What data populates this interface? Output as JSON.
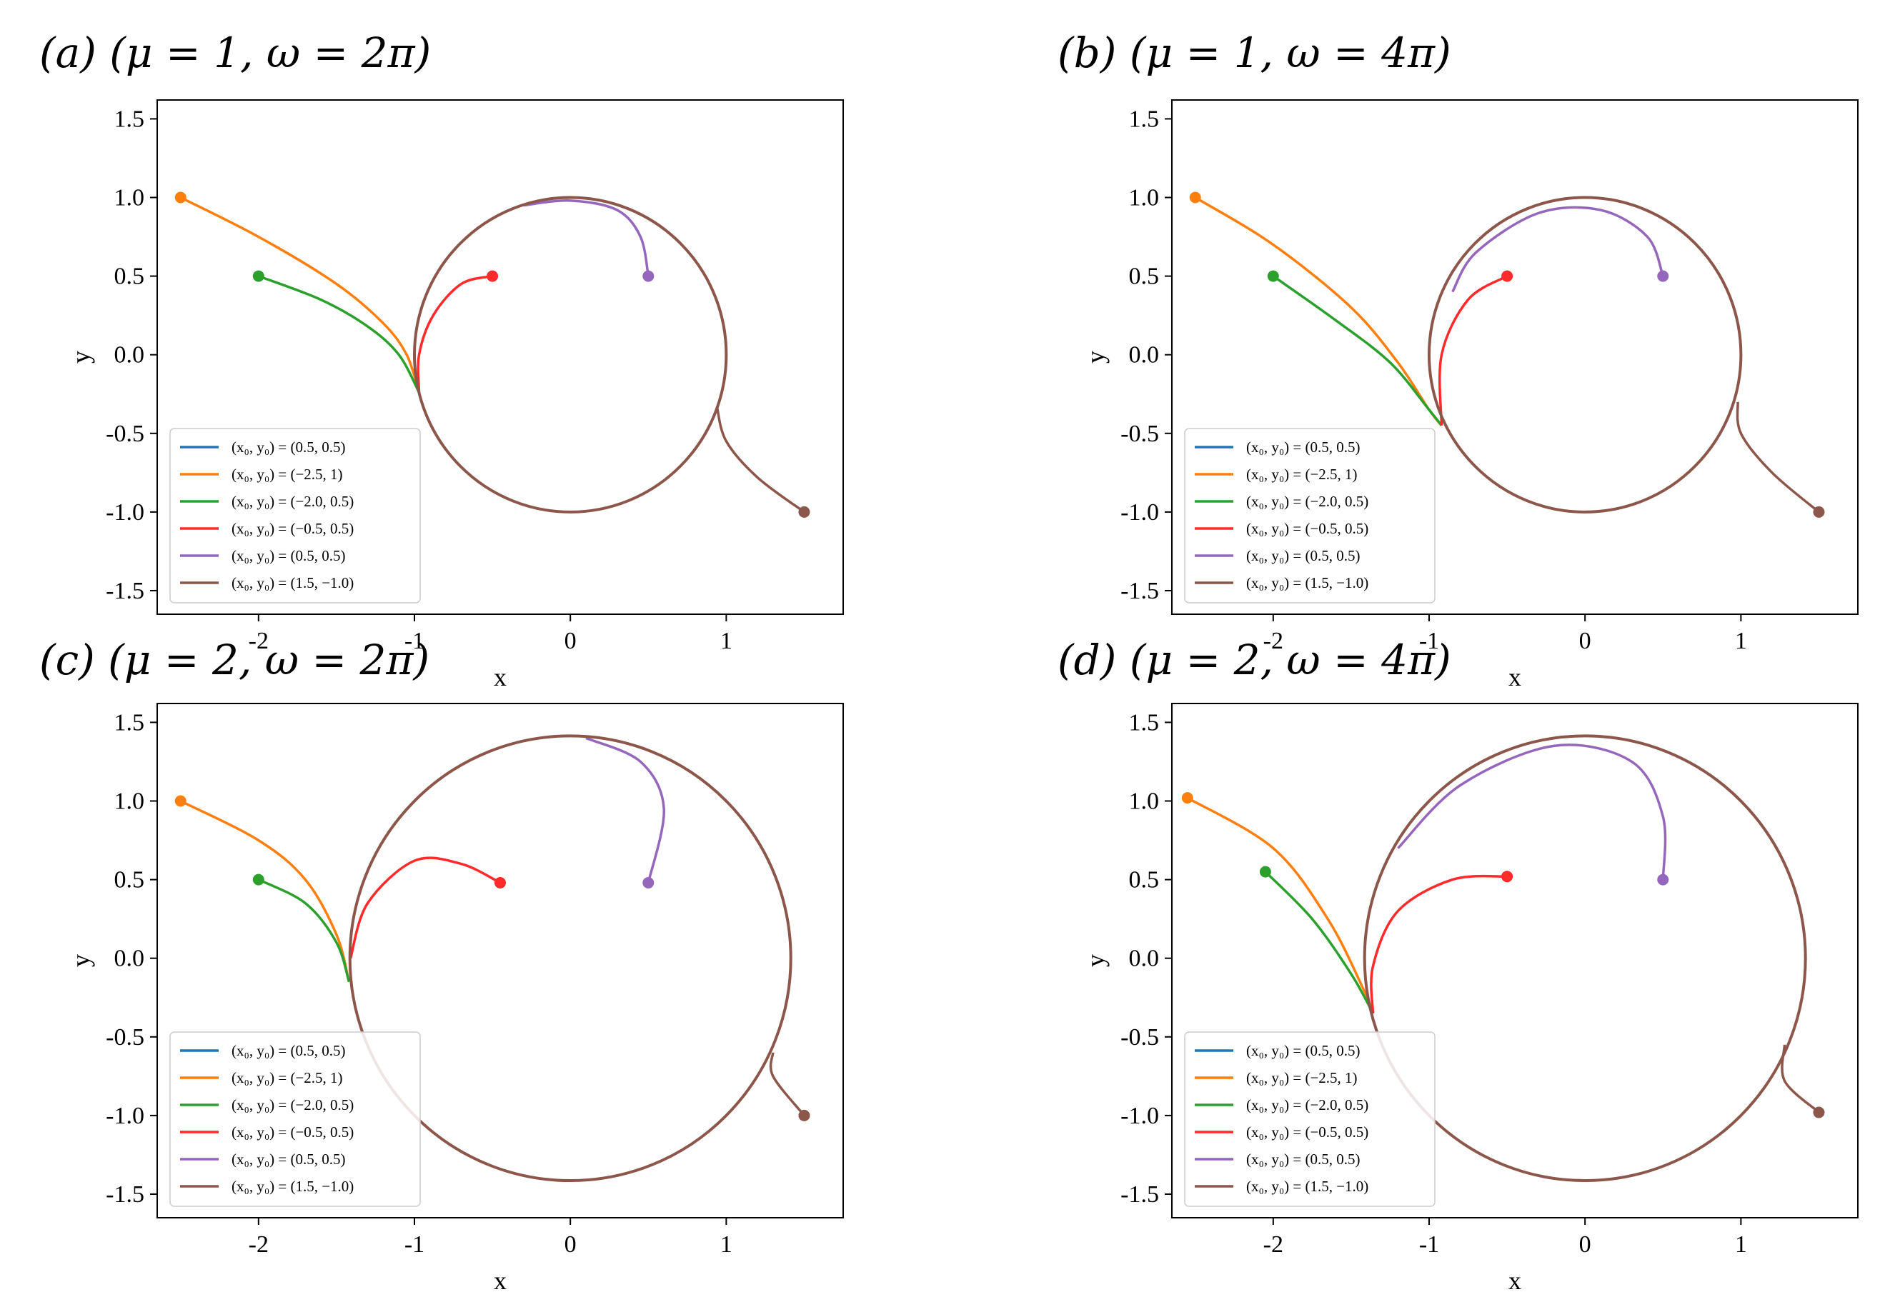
{
  "chart_data": [
    {
      "type": "line",
      "title": "(a) (μ = 1, ω = 2π)",
      "mu": 1,
      "omega": "2π",
      "xlabel": "x",
      "ylabel": "y",
      "xlim": [
        -2.65,
        1.75
      ],
      "ylim": [
        -1.65,
        1.62
      ],
      "xticks": [
        -2,
        -1,
        0,
        1
      ],
      "xtick_labels": [
        "-2",
        "-1",
        "0",
        "1"
      ],
      "yticks": [
        1.5,
        1.0,
        0.5,
        0.0,
        -0.5,
        -1.0,
        -1.5
      ],
      "ytick_labels": [
        "1.5",
        "1.0",
        "0.5",
        "0.0",
        "-0.5",
        "-1.0",
        "-1.5"
      ],
      "grid": false,
      "legend_position": "lower-left",
      "limit_cycle_radius": 1.0,
      "series": [
        {
          "name": "(x₀, y₀) = (0.5, 0.5)",
          "color": "#1f77b4",
          "start": [
            0.5,
            0.5
          ],
          "points": [
            [
              0.5,
              0.5
            ]
          ]
        },
        {
          "name": "(x₀, y₀) = (−2.5, 1)",
          "color": "#ff7f0e",
          "start": [
            -2.5,
            1.0
          ],
          "points": [
            [
              -2.5,
              1.0
            ],
            [
              -2.0,
              0.75
            ],
            [
              -1.5,
              0.45
            ],
            [
              -1.2,
              0.2
            ],
            [
              -1.05,
              0.0
            ],
            [
              -0.97,
              -0.24
            ]
          ]
        },
        {
          "name": "(x₀, y₀) = (−2.0, 0.5)",
          "color": "#2ca02c",
          "start": [
            -2.0,
            0.5
          ],
          "points": [
            [
              -2.0,
              0.5
            ],
            [
              -1.6,
              0.35
            ],
            [
              -1.3,
              0.18
            ],
            [
              -1.1,
              0.0
            ],
            [
              -0.97,
              -0.24
            ]
          ]
        },
        {
          "name": "(x₀, y₀) = (−0.5, 0.5)",
          "color": "#ff2a2a",
          "start": [
            -0.5,
            0.5
          ],
          "points": [
            [
              -0.5,
              0.5
            ],
            [
              -0.7,
              0.45
            ],
            [
              -0.88,
              0.25
            ],
            [
              -0.97,
              0.0
            ],
            [
              -0.97,
              -0.24
            ]
          ]
        },
        {
          "name": "(x₀, y₀) = (0.5, 0.5)",
          "color": "#9467bd",
          "start": [
            0.5,
            0.5
          ],
          "points": [
            [
              0.5,
              0.5
            ],
            [
              0.45,
              0.75
            ],
            [
              0.3,
              0.92
            ],
            [
              0.0,
              0.98
            ],
            [
              -0.3,
              0.95
            ]
          ]
        },
        {
          "name": "(x₀, y₀) = (1.5, −1.0)",
          "color": "#8c564b",
          "start": [
            1.5,
            -1.0
          ],
          "points": [
            [
              1.5,
              -1.0
            ],
            [
              1.2,
              -0.78
            ],
            [
              1.0,
              -0.55
            ],
            [
              0.94,
              -0.33
            ]
          ]
        }
      ]
    },
    {
      "type": "line",
      "title": "(b) (μ = 1, ω = 4π)",
      "mu": 1,
      "omega": "4π",
      "xlabel": "x",
      "ylabel": "y",
      "xlim": [
        -2.65,
        1.75
      ],
      "ylim": [
        -1.65,
        1.62
      ],
      "xticks": [
        -2,
        -1,
        0,
        1
      ],
      "xtick_labels": [
        "-2",
        "-1",
        "0",
        "1"
      ],
      "yticks": [
        1.5,
        1.0,
        0.5,
        0.0,
        -0.5,
        -1.0,
        -1.5
      ],
      "ytick_labels": [
        "1.5",
        "1.0",
        "0.5",
        "0.0",
        "-0.5",
        "-1.0",
        "-1.5"
      ],
      "grid": false,
      "legend_position": "lower-left",
      "limit_cycle_radius": 1.0,
      "series": [
        {
          "name": "(x₀, y₀) = (0.5, 0.5)",
          "color": "#1f77b4",
          "start": [
            0.5,
            0.5
          ],
          "points": [
            [
              0.5,
              0.5
            ]
          ]
        },
        {
          "name": "(x₀, y₀) = (−2.5, 1)",
          "color": "#ff7f0e",
          "start": [
            -2.5,
            1.0
          ],
          "points": [
            [
              -2.5,
              1.0
            ],
            [
              -2.0,
              0.7
            ],
            [
              -1.5,
              0.3
            ],
            [
              -1.2,
              -0.05
            ],
            [
              -1.0,
              -0.35
            ],
            [
              -0.92,
              -0.45
            ]
          ]
        },
        {
          "name": "(x₀, y₀) = (−2.0, 0.5)",
          "color": "#2ca02c",
          "start": [
            -2.0,
            0.5
          ],
          "points": [
            [
              -2.0,
              0.5
            ],
            [
              -1.6,
              0.22
            ],
            [
              -1.25,
              -0.05
            ],
            [
              -1.0,
              -0.35
            ],
            [
              -0.92,
              -0.45
            ]
          ]
        },
        {
          "name": "(x₀, y₀) = (−0.5, 0.5)",
          "color": "#ff2a2a",
          "start": [
            -0.5,
            0.5
          ],
          "points": [
            [
              -0.5,
              0.5
            ],
            [
              -0.75,
              0.35
            ],
            [
              -0.92,
              0.0
            ],
            [
              -0.92,
              -0.45
            ]
          ]
        },
        {
          "name": "(x₀, y₀) = (0.5, 0.5)",
          "color": "#9467bd",
          "start": [
            0.5,
            0.5
          ],
          "points": [
            [
              0.5,
              0.5
            ],
            [
              0.4,
              0.75
            ],
            [
              0.1,
              0.92
            ],
            [
              -0.3,
              0.9
            ],
            [
              -0.7,
              0.65
            ],
            [
              -0.85,
              0.4
            ]
          ]
        },
        {
          "name": "(x₀, y₀) = (1.5, −1.0)",
          "color": "#8c564b",
          "start": [
            1.5,
            -1.0
          ],
          "points": [
            [
              1.5,
              -1.0
            ],
            [
              1.2,
              -0.75
            ],
            [
              1.0,
              -0.5
            ],
            [
              0.98,
              -0.3
            ]
          ]
        }
      ]
    },
    {
      "type": "line",
      "title": "(c) (μ = 2, ω = 2π)",
      "mu": 2,
      "omega": "2π",
      "xlabel": "x",
      "ylabel": "y",
      "xlim": [
        -2.65,
        1.75
      ],
      "ylim": [
        -1.65,
        1.62
      ],
      "xticks": [
        -2,
        -1,
        0,
        1
      ],
      "xtick_labels": [
        "-2",
        "-1",
        "0",
        "1"
      ],
      "yticks": [
        1.5,
        1.0,
        0.5,
        0.0,
        -0.5,
        -1.0,
        -1.5
      ],
      "ytick_labels": [
        "1.5",
        "1.0",
        "0.5",
        "0.0",
        "-0.5",
        "-1.0",
        "-1.5"
      ],
      "grid": false,
      "legend_position": "lower-left",
      "limit_cycle_radius": 1.414,
      "series": [
        {
          "name": "(x₀, y₀) = (0.5, 0.5)",
          "color": "#1f77b4",
          "start": [
            0.5,
            0.5
          ],
          "points": [
            [
              0.5,
              0.5
            ]
          ]
        },
        {
          "name": "(x₀, y₀) = (−2.5, 1)",
          "color": "#ff7f0e",
          "start": [
            -2.5,
            1.0
          ],
          "points": [
            [
              -2.5,
              1.0
            ],
            [
              -2.0,
              0.75
            ],
            [
              -1.7,
              0.5
            ],
            [
              -1.5,
              0.15
            ],
            [
              -1.42,
              -0.15
            ]
          ]
        },
        {
          "name": "(x₀, y₀) = (−2.0, 0.5)",
          "color": "#2ca02c",
          "start": [
            -2.0,
            0.5
          ],
          "points": [
            [
              -2.0,
              0.5
            ],
            [
              -1.7,
              0.35
            ],
            [
              -1.5,
              0.1
            ],
            [
              -1.42,
              -0.15
            ]
          ]
        },
        {
          "name": "(x₀, y₀) = (−0.5, 0.5)",
          "color": "#ff2a2a",
          "start": [
            -0.45,
            0.48
          ],
          "points": [
            [
              -0.45,
              0.48
            ],
            [
              -0.7,
              0.6
            ],
            [
              -1.0,
              0.62
            ],
            [
              -1.3,
              0.35
            ],
            [
              -1.41,
              0.0
            ]
          ]
        },
        {
          "name": "(x₀, y₀) = (0.5, 0.5)",
          "color": "#9467bd",
          "start": [
            0.5,
            0.48
          ],
          "points": [
            [
              0.5,
              0.48
            ],
            [
              0.6,
              0.95
            ],
            [
              0.45,
              1.25
            ],
            [
              0.1,
              1.4
            ]
          ]
        },
        {
          "name": "(x₀, y₀) = (1.5, −1.0)",
          "color": "#8c564b",
          "start": [
            1.5,
            -1.0
          ],
          "points": [
            [
              1.5,
              -1.0
            ],
            [
              1.3,
              -0.75
            ],
            [
              1.3,
              -0.6
            ]
          ]
        }
      ]
    },
    {
      "type": "line",
      "title": "(d) (μ = 2, ω = 4π)",
      "mu": 2,
      "omega": "4π",
      "xlabel": "x",
      "ylabel": "y",
      "xlim": [
        -2.65,
        1.75
      ],
      "ylim": [
        -1.65,
        1.62
      ],
      "xticks": [
        -2,
        -1,
        0,
        1
      ],
      "xtick_labels": [
        "-2",
        "-1",
        "0",
        "1"
      ],
      "yticks": [
        1.5,
        1.0,
        0.5,
        0.0,
        -0.5,
        -1.0,
        -1.5
      ],
      "ytick_labels": [
        "1.5",
        "1.0",
        "0.5",
        "0.0",
        "-0.5",
        "-1.0",
        "-1.5"
      ],
      "grid": false,
      "legend_position": "lower-left",
      "limit_cycle_radius": 1.414,
      "series": [
        {
          "name": "(x₀, y₀) = (0.5, 0.5)",
          "color": "#1f77b4",
          "start": [
            0.5,
            0.5
          ],
          "points": [
            [
              0.5,
              0.5
            ]
          ]
        },
        {
          "name": "(x₀, y₀) = (−2.5, 1)",
          "color": "#ff7f0e",
          "start": [
            -2.55,
            1.02
          ],
          "points": [
            [
              -2.55,
              1.02
            ],
            [
              -2.0,
              0.7
            ],
            [
              -1.65,
              0.25
            ],
            [
              -1.42,
              -0.2
            ],
            [
              -1.36,
              -0.35
            ]
          ]
        },
        {
          "name": "(x₀, y₀) = (−2.0, 0.5)",
          "color": "#2ca02c",
          "start": [
            -2.05,
            0.55
          ],
          "points": [
            [
              -2.05,
              0.55
            ],
            [
              -1.75,
              0.25
            ],
            [
              -1.5,
              -0.1
            ],
            [
              -1.36,
              -0.35
            ]
          ]
        },
        {
          "name": "(x₀, y₀) = (−0.5, 0.5)",
          "color": "#ff2a2a",
          "start": [
            -0.5,
            0.52
          ],
          "points": [
            [
              -0.5,
              0.52
            ],
            [
              -0.85,
              0.5
            ],
            [
              -1.2,
              0.3
            ],
            [
              -1.36,
              -0.05
            ],
            [
              -1.36,
              -0.35
            ]
          ]
        },
        {
          "name": "(x₀, y₀) = (0.5, 0.5)",
          "color": "#9467bd",
          "start": [
            0.5,
            0.5
          ],
          "points": [
            [
              0.5,
              0.5
            ],
            [
              0.5,
              0.9
            ],
            [
              0.3,
              1.25
            ],
            [
              -0.2,
              1.35
            ],
            [
              -0.8,
              1.1
            ],
            [
              -1.2,
              0.7
            ]
          ]
        },
        {
          "name": "(x₀, y₀) = (1.5, −1.0)",
          "color": "#8c564b",
          "start": [
            1.5,
            -0.98
          ],
          "points": [
            [
              1.5,
              -0.98
            ],
            [
              1.28,
              -0.78
            ],
            [
              1.28,
              -0.55
            ]
          ]
        }
      ]
    }
  ]
}
